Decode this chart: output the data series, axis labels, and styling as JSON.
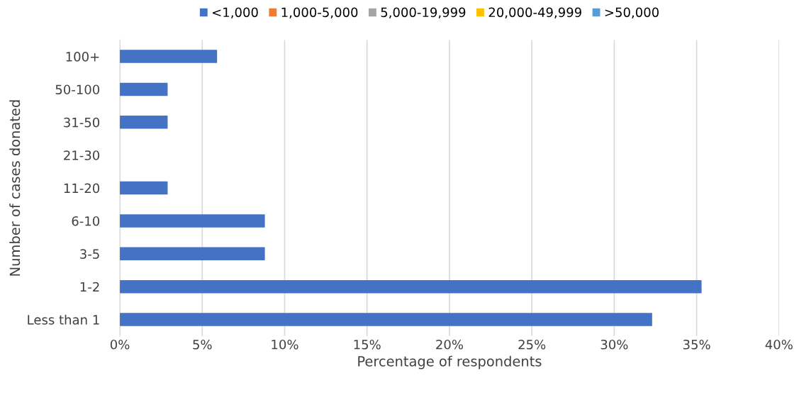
{
  "chart_data": {
    "type": "bar",
    "orientation": "horizontal",
    "xlabel": "Percentage of respondents",
    "ylabel": "Number of cases donated",
    "categories": [
      "100+",
      "50-100",
      "31-50",
      "21-30",
      "11-20",
      "6-10",
      "3-5",
      "1-2",
      "Less than 1"
    ],
    "series": [
      {
        "name": "<1,000",
        "color": "#4472c4",
        "values": [
          5.9,
          2.9,
          2.9,
          null,
          2.9,
          8.8,
          8.8,
          35.3,
          32.3
        ]
      },
      {
        "name": "1,000-5,000",
        "color": "#ed7d31",
        "values": [
          null,
          null,
          null,
          null,
          null,
          null,
          null,
          null,
          null
        ]
      },
      {
        "name": "5,000-19,999",
        "color": "#a5a5a5",
        "values": [
          null,
          null,
          null,
          null,
          null,
          null,
          null,
          null,
          null
        ]
      },
      {
        "name": "20,000-49,999",
        "color": "#ffc000",
        "values": [
          null,
          null,
          null,
          null,
          null,
          null,
          null,
          null,
          null
        ]
      },
      {
        "name": ">50,000",
        "color": "#5b9bd5",
        "values": [
          null,
          null,
          null,
          null,
          null,
          null,
          null,
          null,
          null
        ]
      }
    ],
    "xlim": [
      0,
      40
    ],
    "xticks": [
      {
        "value": 0,
        "label": "0%"
      },
      {
        "value": 5,
        "label": "5%"
      },
      {
        "value": 10,
        "label": "10%"
      },
      {
        "value": 15,
        "label": "15%"
      },
      {
        "value": 20,
        "label": "20%"
      },
      {
        "value": 25,
        "label": "25%"
      },
      {
        "value": 30,
        "label": "30%"
      },
      {
        "value": 35,
        "label": "35%"
      },
      {
        "value": 40,
        "label": "40%"
      }
    ],
    "grid": "x",
    "legend": "top"
  }
}
